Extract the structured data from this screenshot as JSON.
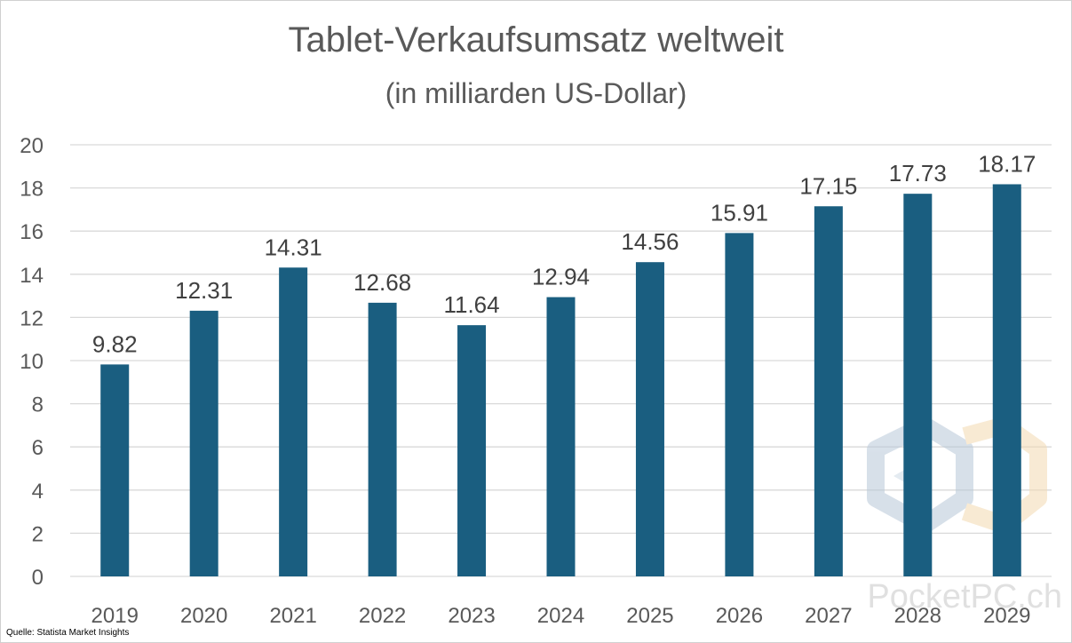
{
  "chart_data": {
    "type": "bar",
    "title": "Tablet-Verkaufsumsatz weltweit",
    "subtitle": "(in milliarden US-Dollar)",
    "categories": [
      "2019",
      "2020",
      "2021",
      "2022",
      "2023",
      "2024",
      "2025",
      "2026",
      "2027",
      "2028",
      "2029"
    ],
    "values": [
      9.82,
      12.31,
      14.31,
      12.68,
      11.64,
      12.94,
      14.56,
      15.91,
      17.15,
      17.73,
      18.17
    ],
    "data_labels": [
      "9.82",
      "12.31",
      "14.31",
      "12.68",
      "11.64",
      "12.94",
      "14.56",
      "15.91",
      "17.15",
      "17.73",
      "18.17"
    ],
    "ylim": [
      0,
      20
    ],
    "yticks": [
      0,
      2,
      4,
      6,
      8,
      10,
      12,
      14,
      16,
      18,
      20
    ],
    "ytick_labels": [
      "0",
      "2",
      "4",
      "6",
      "8",
      "10",
      "12",
      "14",
      "16",
      "18",
      "20"
    ],
    "grid": true,
    "legend": "none",
    "bar_color": "#1a5e80",
    "grid_color": "#d9d9d9"
  },
  "source": "Quelle: Statista Market Insights",
  "watermark": {
    "text": "PocketPC.ch",
    "icon": "pocketpc-logo-icon"
  }
}
